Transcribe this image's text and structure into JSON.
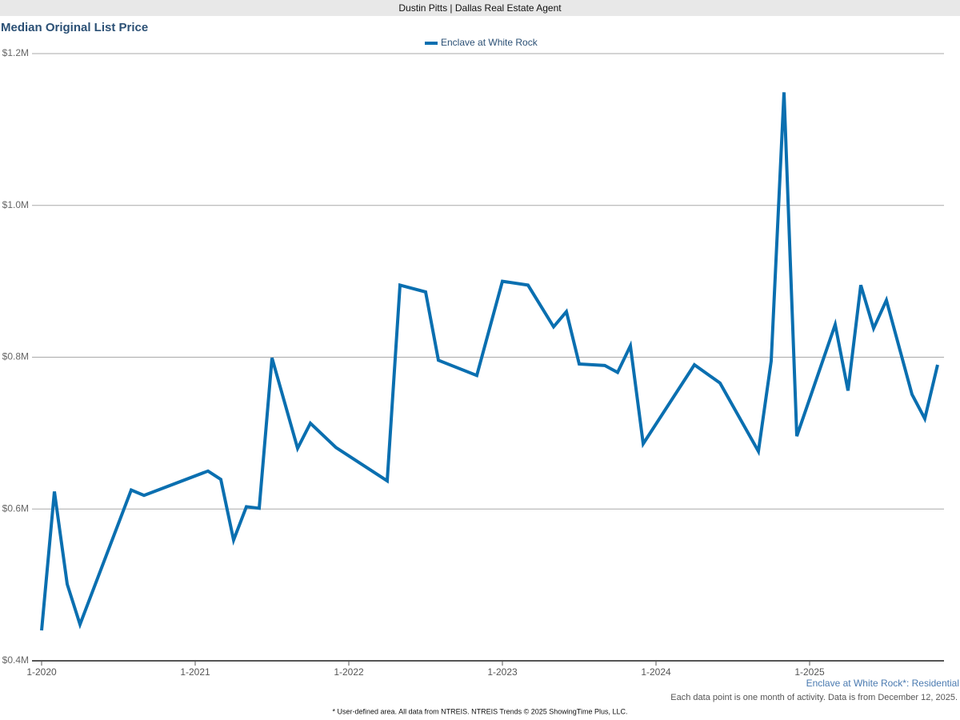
{
  "header": "Dustin Pitts | Dallas Real Estate Agent",
  "chart_data": {
    "type": "line",
    "title": "Median Original List Price",
    "x": [
      "1-2020",
      "2-2020",
      "3-2020",
      "4-2020",
      "8-2020",
      "9-2020",
      "2-2021",
      "3-2021",
      "4-2021",
      "5-2021",
      "6-2021",
      "7-2021",
      "9-2021",
      "10-2021",
      "12-2021",
      "4-2022",
      "5-2022",
      "7-2022",
      "8-2022",
      "11-2022",
      "1-2023",
      "3-2023",
      "5-2023",
      "6-2023",
      "7-2023",
      "9-2023",
      "10-2023",
      "11-2023",
      "12-2023",
      "4-2024",
      "6-2024",
      "9-2024",
      "10-2024",
      "11-2024",
      "12-2024",
      "3-2025",
      "4-2025",
      "5-2025",
      "6-2025",
      "7-2025",
      "9-2025",
      "10-2025",
      "11-2025"
    ],
    "series": [
      {
        "name": "Enclave at White Rock",
        "color": "#0a6fb0",
        "values": [
          440000,
          623000,
          501000,
          448000,
          625000,
          618000,
          650000,
          639000,
          559000,
          603000,
          601000,
          799000,
          680000,
          713000,
          681000,
          637000,
          895000,
          886000,
          796000,
          776000,
          900000,
          895000,
          840000,
          860000,
          791000,
          789000,
          780000,
          815000,
          686000,
          790000,
          766000,
          676000,
          795000,
          1149000,
          696000,
          843000,
          756000,
          895000,
          838000,
          875000,
          751000,
          719000,
          790000
        ]
      }
    ],
    "xlim": [
      "1-2020",
      "12-2025"
    ],
    "xticks": [
      "1-2020",
      "1-2021",
      "1-2022",
      "1-2023",
      "1-2024",
      "1-2025"
    ],
    "ylim": [
      400000,
      1200000
    ],
    "yticks": [
      {
        "value": 400000,
        "label": "$0.4M"
      },
      {
        "value": 600000,
        "label": "$0.6M"
      },
      {
        "value": 800000,
        "label": "$0.8M"
      },
      {
        "value": 1000000,
        "label": "$1.0M"
      },
      {
        "value": 1200000,
        "label": "$1.2M"
      }
    ],
    "grid": true,
    "legend": "top"
  },
  "footer": {
    "area": "Enclave at White Rock*: Residential",
    "note": "Each data point is one month of activity. Data is from December 12, 2025.",
    "source": "* User-defined area. All data from NTREIS. NTREIS Trends © 2025 ShowingTime Plus, LLC."
  }
}
